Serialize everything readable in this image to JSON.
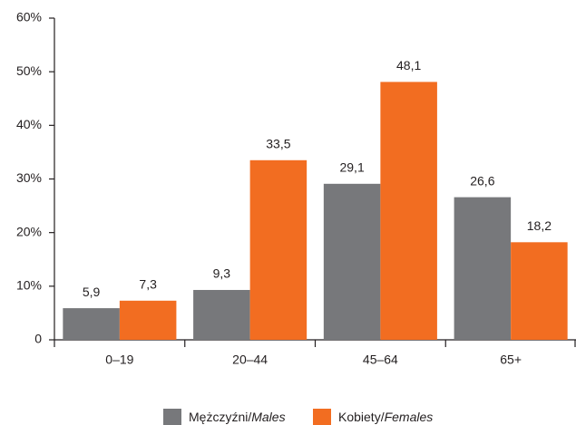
{
  "chart_data": {
    "type": "bar",
    "categories": [
      "0–19",
      "20–44",
      "45–64",
      "65+"
    ],
    "series": [
      {
        "name": "Mężczyźni/Males",
        "color": "#77787b",
        "values": [
          5.9,
          9.3,
          29.1,
          26.6
        ],
        "value_labels": [
          "5,9",
          "9,3",
          "29,1",
          "26,6"
        ]
      },
      {
        "name": "Kobiety/Females",
        "color": "#f26d21",
        "values": [
          7.3,
          33.5,
          48.1,
          18.2
        ],
        "value_labels": [
          "7,3",
          "33,5",
          "48,1",
          "18,2"
        ]
      }
    ],
    "ylim": [
      0,
      60
    ],
    "yticks": [
      0,
      {
        "value": 10,
        "label": "10%"
      },
      {
        "value": 20,
        "label": "20%"
      },
      {
        "value": 30,
        "label": "30%"
      },
      {
        "value": 40,
        "label": "40%"
      },
      {
        "value": 50,
        "label": "50%"
      },
      {
        "value": 60,
        "label": "60%"
      }
    ],
    "grid": false,
    "legend": "bottom"
  }
}
